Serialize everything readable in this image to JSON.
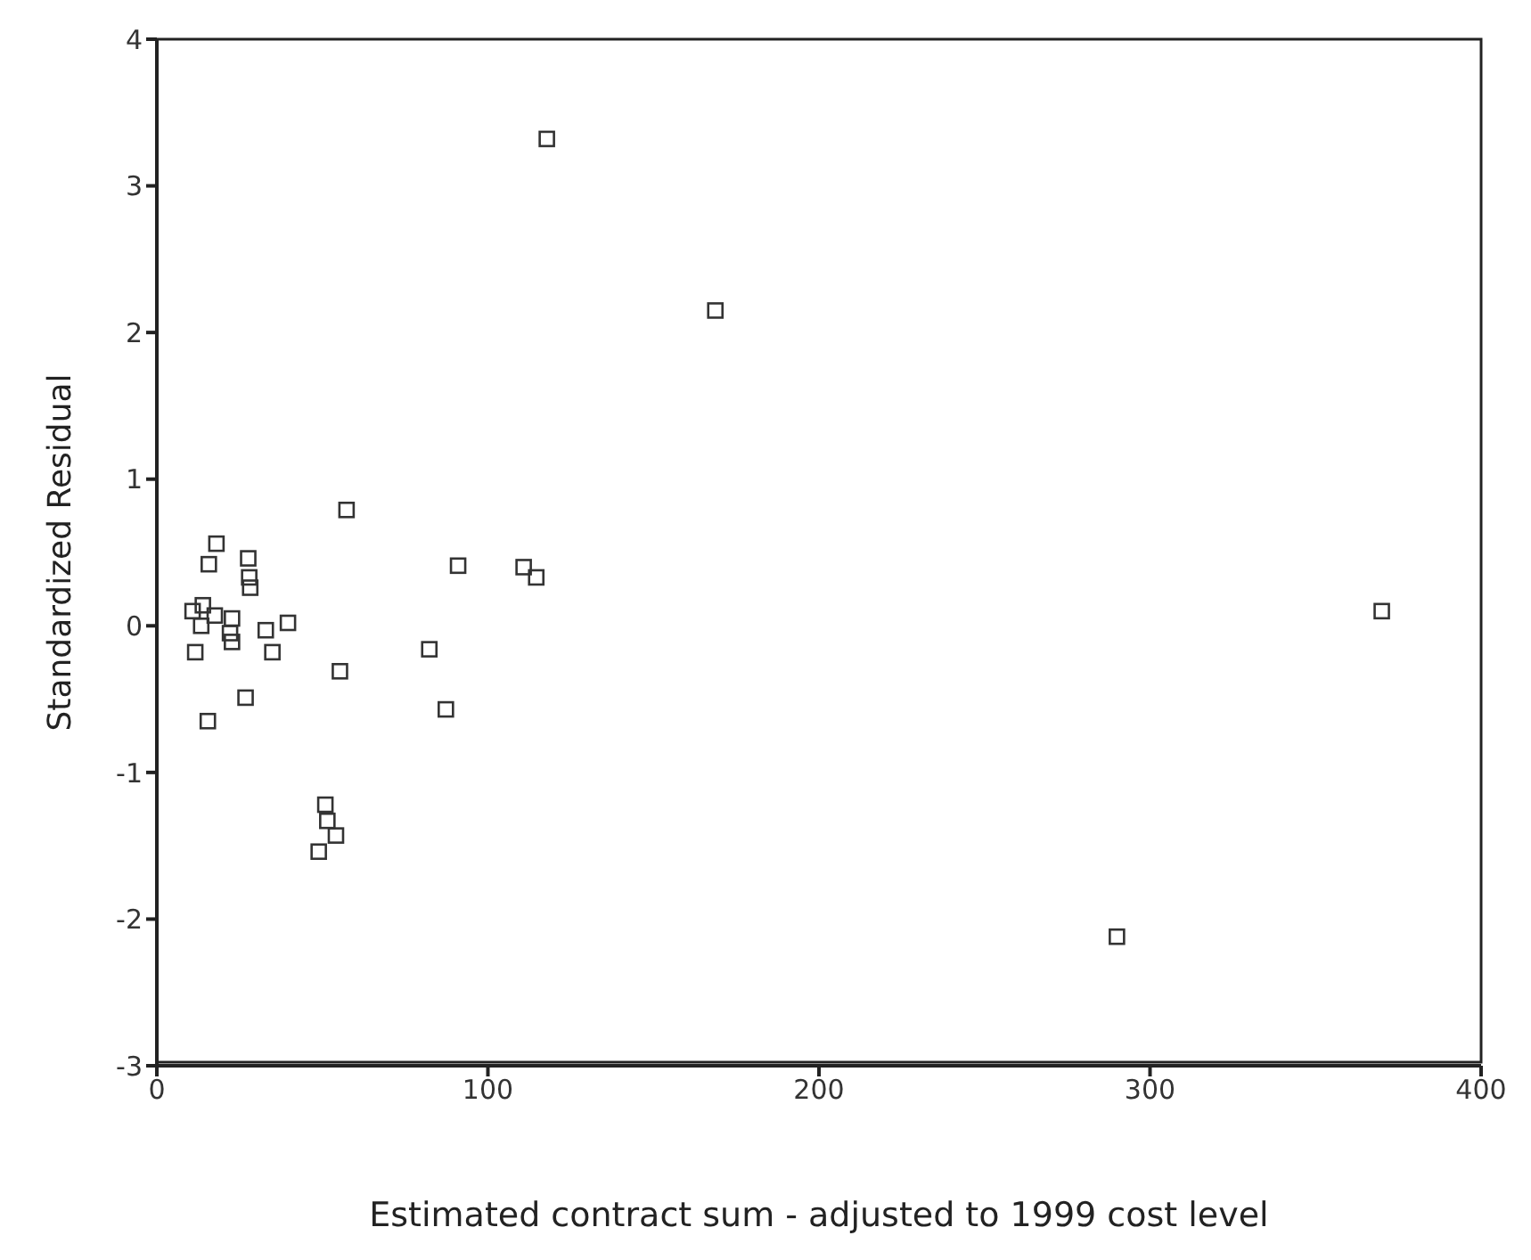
{
  "chart_data": {
    "type": "scatter",
    "xlabel": "Estimated contract sum - adjusted to 1999 cost level",
    "ylabel": "Standardized Residual",
    "xlim": [
      0,
      400
    ],
    "xticks": [
      0,
      100,
      200,
      300,
      400
    ],
    "ylim": [
      -3,
      4
    ],
    "yticks": [
      -3,
      -2,
      -1,
      0,
      1,
      2,
      3,
      4
    ],
    "grid": false,
    "marker": "square",
    "series": [
      {
        "color": "#333333",
        "x": [
          117.8,
          168.7,
          370,
          290,
          57.3,
          91,
          110.8,
          114.6,
          82.3,
          87.3,
          55.3,
          50.9,
          51.5,
          54.1,
          48.9,
          18,
          15.7,
          27.6,
          27.9,
          28.2,
          10.8,
          13.9,
          13.4,
          17.5,
          22.7,
          22.1,
          22.7,
          32.9,
          39.6,
          34.9,
          11.6,
          26.8,
          15.4
        ],
        "values": [
          3.32,
          2.15,
          0.1,
          -2.12,
          0.79,
          0.41,
          0.4,
          0.33,
          -0.16,
          -0.57,
          -0.31,
          -1.22,
          -1.33,
          -1.43,
          -1.54,
          0.56,
          0.42,
          0.46,
          0.33,
          0.26,
          0.1,
          0.14,
          0,
          0.07,
          0.05,
          -0.05,
          -0.11,
          -0.03,
          0.02,
          -0.18,
          -0.18,
          -0.49,
          -0.65
        ]
      }
    ]
  }
}
